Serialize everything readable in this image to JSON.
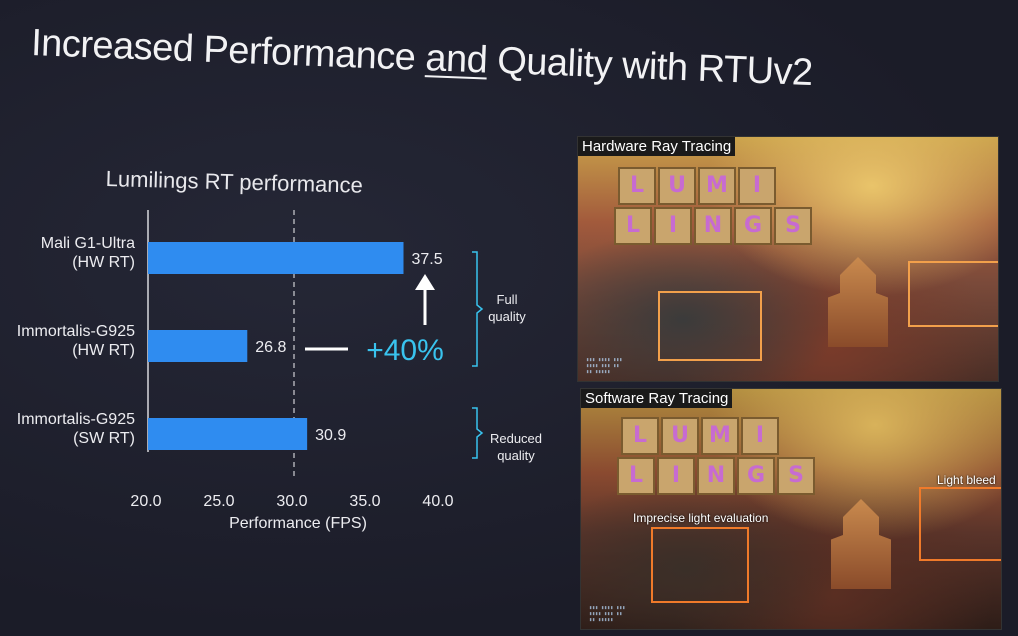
{
  "slide": {
    "title_part1": "Increased Performance ",
    "title_underlined": "and",
    "title_part2": " Quality with RTUv2"
  },
  "chart_data": {
    "type": "bar",
    "orientation": "horizontal",
    "title": "Lumilings RT performance",
    "xlabel": "Performance (FPS)",
    "xlim": [
      20.0,
      40.0
    ],
    "xticks": [
      "20.0",
      "25.0",
      "30.0",
      "35.0",
      "40.0"
    ],
    "reference_line": 30.0,
    "categories": [
      {
        "line1": "Mali G1-Ultra",
        "line2": "(HW RT)"
      },
      {
        "line1": "Immortalis-G925",
        "line2": "(HW RT)"
      },
      {
        "line1": "Immortalis-G925",
        "line2": "(SW RT)"
      }
    ],
    "values": [
      37.5,
      26.8,
      30.9
    ],
    "value_labels": [
      "37.5",
      "26.8",
      "30.9"
    ],
    "bar_color": "#2f8cf0",
    "annotation_gain": "+40%",
    "groups": [
      {
        "line1": "Full",
        "line2": "quality"
      },
      {
        "line1": "Reduced",
        "line2": "quality"
      }
    ],
    "accent_color": "#39c3ee"
  },
  "screenshots": {
    "top_label": "Hardware Ray Tracing",
    "bottom_label": "Software Ray Tracing",
    "bottom_annotation_left": "Imprecise light evaluation",
    "bottom_annotation_right": "Light bleed",
    "tiles_row1": [
      "L",
      "U",
      "M",
      "I"
    ],
    "tiles_row2": [
      "L",
      "I",
      "N",
      "G",
      "S"
    ],
    "highlight_color": "#f2a04b"
  }
}
